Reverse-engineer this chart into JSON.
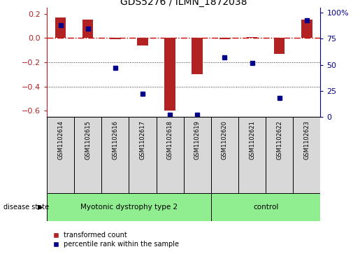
{
  "title": "GDS5276 / ILMN_1872038",
  "categories": [
    "GSM1102614",
    "GSM1102615",
    "GSM1102616",
    "GSM1102617",
    "GSM1102618",
    "GSM1102619",
    "GSM1102620",
    "GSM1102621",
    "GSM1102622",
    "GSM1102623"
  ],
  "red_values": [
    0.17,
    0.15,
    -0.01,
    -0.06,
    -0.6,
    -0.3,
    -0.01,
    0.01,
    -0.13,
    0.15
  ],
  "blue_values": [
    88,
    85,
    47,
    22,
    2,
    2,
    57,
    52,
    18,
    93
  ],
  "group1_label": "Myotonic dystrophy type 2",
  "group1_indices": [
    0,
    1,
    2,
    3,
    4,
    5
  ],
  "group2_label": "control",
  "group2_indices": [
    6,
    7,
    8,
    9
  ],
  "disease_state_label": "disease state",
  "legend_red": "transformed count",
  "legend_blue": "percentile rank within the sample",
  "ylim_left": [
    -0.65,
    0.25
  ],
  "ylim_right": [
    0,
    105
  ],
  "yticks_left": [
    -0.6,
    -0.4,
    -0.2,
    0.0,
    0.2
  ],
  "yticks_right": [
    0,
    25,
    50,
    75,
    100
  ],
  "red_color": "#b22222",
  "blue_color": "#00008b",
  "bar_width": 0.4,
  "bg_color": "#d8d8d8",
  "group_green": "#90ee90",
  "hline0_color": "#cc0000",
  "grid_color": "#333333"
}
